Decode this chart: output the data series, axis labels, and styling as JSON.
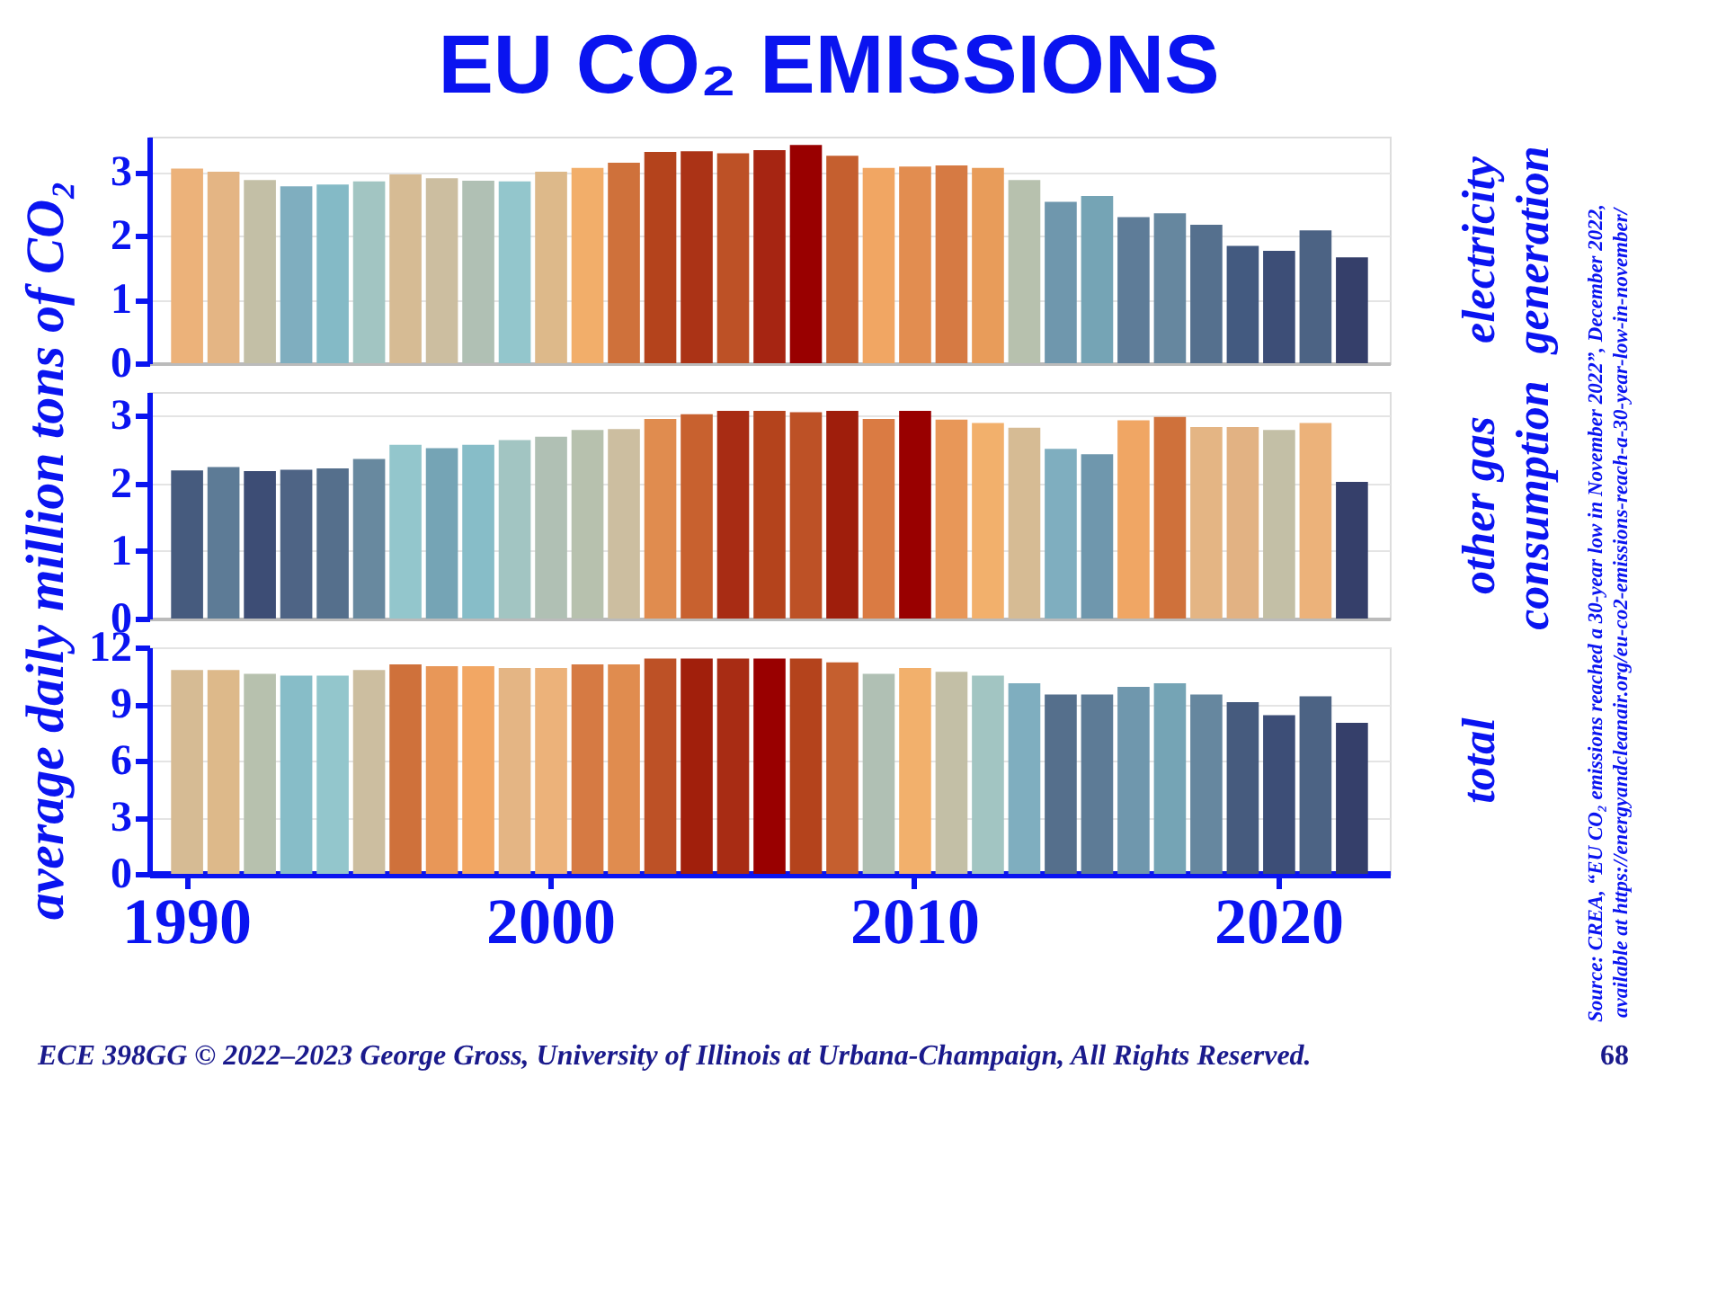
{
  "chart_data": [
    {
      "type": "bar",
      "title": "EU CO₂ EMISSIONS",
      "ylabel": "average daily million tons of CO₂",
      "annotations": [
        "electricity generation"
      ],
      "categories": [
        "1990",
        null,
        null,
        null,
        null,
        null,
        null,
        null,
        null,
        null,
        "2000",
        null,
        null,
        null,
        null,
        null,
        null,
        null,
        null,
        null,
        "2010",
        null,
        null,
        null,
        null,
        null,
        null,
        null,
        null,
        null,
        "2020",
        null,
        null
      ],
      "values": [
        3.05,
        3.0,
        2.87,
        2.77,
        2.8,
        2.85,
        2.96,
        2.9,
        2.86,
        2.85,
        3.0,
        3.06,
        3.14,
        3.31,
        3.32,
        3.29,
        3.34,
        3.42,
        3.25,
        3.06,
        3.08,
        3.1,
        3.06,
        2.87,
        2.53,
        2.62,
        2.29,
        2.35,
        2.17,
        1.84,
        1.76,
        2.08,
        1.66
      ],
      "colors": [
        "#ecb27a",
        "#e4b584",
        "#c3bfa6",
        "#7faebf",
        "#84bac6",
        "#a2c5c2",
        "#d6bb94",
        "#ccbea0",
        "#b0c0b4",
        "#93c6cc",
        "#ddb98a",
        "#f2ae6a",
        "#cf713b",
        "#b4431c",
        "#ab3316",
        "#bd5126",
        "#a62512",
        "#990000",
        "#c55f2f",
        "#f1a663",
        "#e28d50",
        "#d67a43",
        "#e89c5a",
        "#b7c1ae",
        "#6f97ad",
        "#75a4b5",
        "#5e7c98",
        "#66879f",
        "#55708e",
        "#435a80",
        "#3d4e77",
        "#4c6384",
        "#353f6a"
      ],
      "ylim": [
        0,
        3.55
      ],
      "yticks": [
        0,
        1,
        2,
        3
      ],
      "grid": "y",
      "tick_labels": "y"
    },
    {
      "type": "bar",
      "annotations": [
        "other gas consumption"
      ],
      "categories": [
        "1990",
        null,
        null,
        null,
        null,
        null,
        null,
        null,
        null,
        null,
        "2000",
        null,
        null,
        null,
        null,
        null,
        null,
        null,
        null,
        null,
        "2010",
        null,
        null,
        null,
        null,
        null,
        null,
        null,
        null,
        null,
        "2020",
        null,
        null
      ],
      "values": [
        2.19,
        2.24,
        2.18,
        2.2,
        2.22,
        2.36,
        2.57,
        2.52,
        2.57,
        2.64,
        2.69,
        2.79,
        2.8,
        2.95,
        3.02,
        3.07,
        3.07,
        3.05,
        3.07,
        2.95,
        3.07,
        2.94,
        2.89,
        2.82,
        2.51,
        2.43,
        2.93,
        2.98,
        2.83,
        2.83,
        2.79,
        2.89,
        2.02
      ],
      "colors": [
        "#465b7e",
        "#5d7b96",
        "#3d4d75",
        "#4e6485",
        "#556f8c",
        "#68899f",
        "#93c6cc",
        "#75a4b5",
        "#87bdc8",
        "#a2c5c2",
        "#b0c0b4",
        "#b7c1ae",
        "#ccbea0",
        "#e08c4f",
        "#c8612f",
        "#a82c14",
        "#b4431c",
        "#bd5126",
        "#9f1e0c",
        "#da7b43",
        "#990000",
        "#e89758",
        "#f2b06c",
        "#d6bb94",
        "#7faebf",
        "#6f97ad",
        "#f0a664",
        "#cf713b",
        "#e4b584",
        "#e2b283",
        "#c3bfa6",
        "#ecb27a",
        "#353f6a"
      ],
      "ylim": [
        0,
        3.35
      ],
      "yticks": [
        0,
        1,
        2,
        3
      ],
      "grid": "y",
      "tick_labels": "y"
    },
    {
      "type": "bar",
      "annotations": [
        "total",
        "Source: CREA, “EU CO₂ emissions reached a 30-year low in November 2022”, December 2022, available at https://energyandcleanair.org/eu-co2-emissions-reach-a-30-year-low-in-november/",
        "ECE 398GG   © 2022–2023  George Gross, University of Illinois at Urbana-Champaign, All Rights Reserved.",
        "68"
      ],
      "categories": [
        "1990",
        null,
        null,
        null,
        null,
        null,
        null,
        null,
        null,
        null,
        "2000",
        null,
        null,
        null,
        null,
        null,
        null,
        null,
        null,
        null,
        "2010",
        null,
        null,
        null,
        null,
        null,
        null,
        null,
        null,
        null,
        "2020",
        null,
        null
      ],
      "values": [
        10.8,
        10.8,
        10.6,
        10.5,
        10.5,
        10.8,
        11.1,
        11.0,
        11.0,
        10.9,
        10.9,
        11.1,
        11.1,
        11.4,
        11.4,
        11.4,
        11.4,
        11.4,
        11.2,
        10.6,
        10.9,
        10.7,
        10.5,
        10.1,
        9.5,
        9.5,
        9.9,
        10.1,
        9.5,
        9.1,
        8.4,
        9.4,
        8.0
      ],
      "colors": [
        "#d6bb94",
        "#ddb98a",
        "#b7c1ae",
        "#87bdc8",
        "#93c6cc",
        "#ccbea0",
        "#cf713b",
        "#e89758",
        "#f2a764",
        "#e4b584",
        "#ecb27a",
        "#d67a43",
        "#e08c4f",
        "#bd5126",
        "#a11f0c",
        "#a82c14",
        "#990000",
        "#b4431c",
        "#c55f2f",
        "#b0c0b4",
        "#f2b06c",
        "#c3bfa6",
        "#a2c5c2",
        "#7faebf",
        "#556f8c",
        "#5d7b96",
        "#6f97ad",
        "#75a4b5",
        "#66879f",
        "#465b7e",
        "#3d4e77",
        "#4c6384",
        "#353f6a"
      ],
      "ylim": [
        0,
        12
      ],
      "yticks": [
        0,
        3,
        6,
        9,
        12
      ],
      "grid": "y"
    }
  ]
}
